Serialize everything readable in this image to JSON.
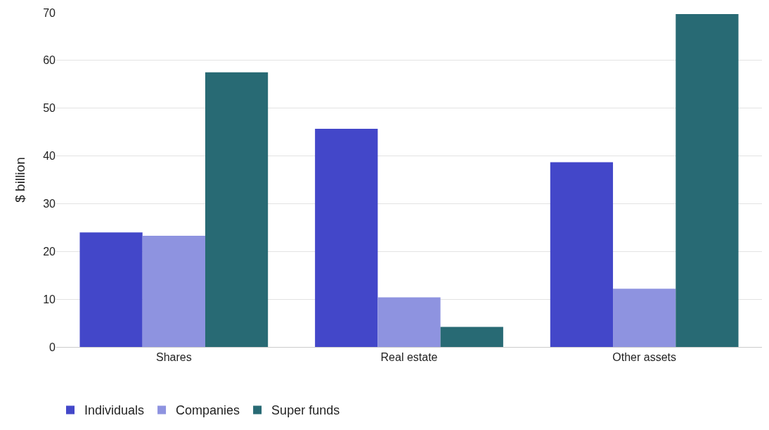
{
  "chart_data": {
    "type": "bar",
    "ylabel": "$ billion",
    "categories": [
      "Shares",
      "Real estate",
      "Other assets"
    ],
    "series": [
      {
        "name": "Individuals",
        "color": "#4347c9",
        "values": [
          24.0,
          45.7,
          38.7
        ]
      },
      {
        "name": "Companies",
        "color": "#8e93e0",
        "values": [
          23.3,
          10.4,
          12.2
        ]
      },
      {
        "name": "Super funds",
        "color": "#286a74",
        "values": [
          57.5,
          4.2,
          69.7
        ]
      }
    ],
    "ylim": [
      0,
      70
    ],
    "yticks": [
      0,
      10,
      20,
      30,
      40,
      50,
      60,
      70
    ],
    "grid": "y",
    "legend": "bottom"
  }
}
